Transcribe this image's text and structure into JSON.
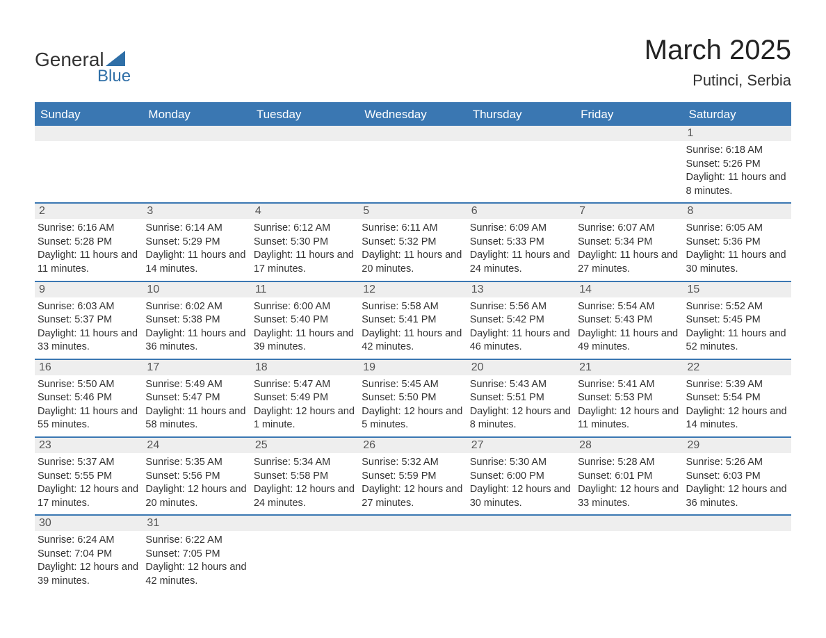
{
  "logo": {
    "main": "General",
    "sub": "Blue"
  },
  "title": "March 2025",
  "location": "Putinci, Serbia",
  "colors": {
    "header_bg": "#3a77b2",
    "header_text": "#ffffff",
    "date_bar_bg": "#eeeeee",
    "date_bar_text": "#555555",
    "body_text": "#333333",
    "row_divider": "#3a77b2"
  },
  "typography": {
    "title_fontsize": 40,
    "location_fontsize": 22,
    "day_header_fontsize": 17,
    "date_fontsize": 16,
    "cell_fontsize": 14.5
  },
  "day_headers": [
    "Sunday",
    "Monday",
    "Tuesday",
    "Wednesday",
    "Thursday",
    "Friday",
    "Saturday"
  ],
  "weeks": [
    [
      {
        "date": "",
        "sunrise": "",
        "sunset": "",
        "daylight": ""
      },
      {
        "date": "",
        "sunrise": "",
        "sunset": "",
        "daylight": ""
      },
      {
        "date": "",
        "sunrise": "",
        "sunset": "",
        "daylight": ""
      },
      {
        "date": "",
        "sunrise": "",
        "sunset": "",
        "daylight": ""
      },
      {
        "date": "",
        "sunrise": "",
        "sunset": "",
        "daylight": ""
      },
      {
        "date": "",
        "sunrise": "",
        "sunset": "",
        "daylight": ""
      },
      {
        "date": "1",
        "sunrise": "Sunrise: 6:18 AM",
        "sunset": "Sunset: 5:26 PM",
        "daylight": "Daylight: 11 hours and 8 minutes."
      }
    ],
    [
      {
        "date": "2",
        "sunrise": "Sunrise: 6:16 AM",
        "sunset": "Sunset: 5:28 PM",
        "daylight": "Daylight: 11 hours and 11 minutes."
      },
      {
        "date": "3",
        "sunrise": "Sunrise: 6:14 AM",
        "sunset": "Sunset: 5:29 PM",
        "daylight": "Daylight: 11 hours and 14 minutes."
      },
      {
        "date": "4",
        "sunrise": "Sunrise: 6:12 AM",
        "sunset": "Sunset: 5:30 PM",
        "daylight": "Daylight: 11 hours and 17 minutes."
      },
      {
        "date": "5",
        "sunrise": "Sunrise: 6:11 AM",
        "sunset": "Sunset: 5:32 PM",
        "daylight": "Daylight: 11 hours and 20 minutes."
      },
      {
        "date": "6",
        "sunrise": "Sunrise: 6:09 AM",
        "sunset": "Sunset: 5:33 PM",
        "daylight": "Daylight: 11 hours and 24 minutes."
      },
      {
        "date": "7",
        "sunrise": "Sunrise: 6:07 AM",
        "sunset": "Sunset: 5:34 PM",
        "daylight": "Daylight: 11 hours and 27 minutes."
      },
      {
        "date": "8",
        "sunrise": "Sunrise: 6:05 AM",
        "sunset": "Sunset: 5:36 PM",
        "daylight": "Daylight: 11 hours and 30 minutes."
      }
    ],
    [
      {
        "date": "9",
        "sunrise": "Sunrise: 6:03 AM",
        "sunset": "Sunset: 5:37 PM",
        "daylight": "Daylight: 11 hours and 33 minutes."
      },
      {
        "date": "10",
        "sunrise": "Sunrise: 6:02 AM",
        "sunset": "Sunset: 5:38 PM",
        "daylight": "Daylight: 11 hours and 36 minutes."
      },
      {
        "date": "11",
        "sunrise": "Sunrise: 6:00 AM",
        "sunset": "Sunset: 5:40 PM",
        "daylight": "Daylight: 11 hours and 39 minutes."
      },
      {
        "date": "12",
        "sunrise": "Sunrise: 5:58 AM",
        "sunset": "Sunset: 5:41 PM",
        "daylight": "Daylight: 11 hours and 42 minutes."
      },
      {
        "date": "13",
        "sunrise": "Sunrise: 5:56 AM",
        "sunset": "Sunset: 5:42 PM",
        "daylight": "Daylight: 11 hours and 46 minutes."
      },
      {
        "date": "14",
        "sunrise": "Sunrise: 5:54 AM",
        "sunset": "Sunset: 5:43 PM",
        "daylight": "Daylight: 11 hours and 49 minutes."
      },
      {
        "date": "15",
        "sunrise": "Sunrise: 5:52 AM",
        "sunset": "Sunset: 5:45 PM",
        "daylight": "Daylight: 11 hours and 52 minutes."
      }
    ],
    [
      {
        "date": "16",
        "sunrise": "Sunrise: 5:50 AM",
        "sunset": "Sunset: 5:46 PM",
        "daylight": "Daylight: 11 hours and 55 minutes."
      },
      {
        "date": "17",
        "sunrise": "Sunrise: 5:49 AM",
        "sunset": "Sunset: 5:47 PM",
        "daylight": "Daylight: 11 hours and 58 minutes."
      },
      {
        "date": "18",
        "sunrise": "Sunrise: 5:47 AM",
        "sunset": "Sunset: 5:49 PM",
        "daylight": "Daylight: 12 hours and 1 minute."
      },
      {
        "date": "19",
        "sunrise": "Sunrise: 5:45 AM",
        "sunset": "Sunset: 5:50 PM",
        "daylight": "Daylight: 12 hours and 5 minutes."
      },
      {
        "date": "20",
        "sunrise": "Sunrise: 5:43 AM",
        "sunset": "Sunset: 5:51 PM",
        "daylight": "Daylight: 12 hours and 8 minutes."
      },
      {
        "date": "21",
        "sunrise": "Sunrise: 5:41 AM",
        "sunset": "Sunset: 5:53 PM",
        "daylight": "Daylight: 12 hours and 11 minutes."
      },
      {
        "date": "22",
        "sunrise": "Sunrise: 5:39 AM",
        "sunset": "Sunset: 5:54 PM",
        "daylight": "Daylight: 12 hours and 14 minutes."
      }
    ],
    [
      {
        "date": "23",
        "sunrise": "Sunrise: 5:37 AM",
        "sunset": "Sunset: 5:55 PM",
        "daylight": "Daylight: 12 hours and 17 minutes."
      },
      {
        "date": "24",
        "sunrise": "Sunrise: 5:35 AM",
        "sunset": "Sunset: 5:56 PM",
        "daylight": "Daylight: 12 hours and 20 minutes."
      },
      {
        "date": "25",
        "sunrise": "Sunrise: 5:34 AM",
        "sunset": "Sunset: 5:58 PM",
        "daylight": "Daylight: 12 hours and 24 minutes."
      },
      {
        "date": "26",
        "sunrise": "Sunrise: 5:32 AM",
        "sunset": "Sunset: 5:59 PM",
        "daylight": "Daylight: 12 hours and 27 minutes."
      },
      {
        "date": "27",
        "sunrise": "Sunrise: 5:30 AM",
        "sunset": "Sunset: 6:00 PM",
        "daylight": "Daylight: 12 hours and 30 minutes."
      },
      {
        "date": "28",
        "sunrise": "Sunrise: 5:28 AM",
        "sunset": "Sunset: 6:01 PM",
        "daylight": "Daylight: 12 hours and 33 minutes."
      },
      {
        "date": "29",
        "sunrise": "Sunrise: 5:26 AM",
        "sunset": "Sunset: 6:03 PM",
        "daylight": "Daylight: 12 hours and 36 minutes."
      }
    ],
    [
      {
        "date": "30",
        "sunrise": "Sunrise: 6:24 AM",
        "sunset": "Sunset: 7:04 PM",
        "daylight": "Daylight: 12 hours and 39 minutes."
      },
      {
        "date": "31",
        "sunrise": "Sunrise: 6:22 AM",
        "sunset": "Sunset: 7:05 PM",
        "daylight": "Daylight: 12 hours and 42 minutes."
      },
      {
        "date": "",
        "sunrise": "",
        "sunset": "",
        "daylight": ""
      },
      {
        "date": "",
        "sunrise": "",
        "sunset": "",
        "daylight": ""
      },
      {
        "date": "",
        "sunrise": "",
        "sunset": "",
        "daylight": ""
      },
      {
        "date": "",
        "sunrise": "",
        "sunset": "",
        "daylight": ""
      },
      {
        "date": "",
        "sunrise": "",
        "sunset": "",
        "daylight": ""
      }
    ]
  ]
}
